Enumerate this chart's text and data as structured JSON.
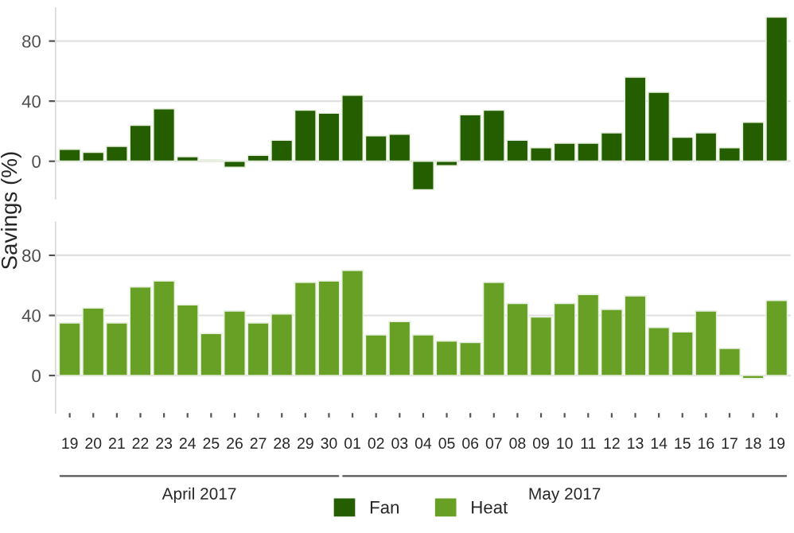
{
  "chart_data": [
    {
      "type": "bar",
      "ylabel": "Savings (%)",
      "categories": [
        "19",
        "20",
        "21",
        "22",
        "23",
        "24",
        "25",
        "26",
        "27",
        "28",
        "29",
        "30",
        "01",
        "02",
        "03",
        "04",
        "05",
        "06",
        "07",
        "08",
        "09",
        "10",
        "11",
        "12",
        "13",
        "14",
        "15",
        "16",
        "17",
        "18",
        "19"
      ],
      "series": [
        {
          "name": "Fan",
          "color": "#255e00",
          "values": [
            8,
            6,
            10,
            24,
            35,
            3,
            1,
            -4,
            4,
            14,
            34,
            32,
            44,
            17,
            18,
            -19,
            -3,
            31,
            34,
            14,
            9,
            12,
            12,
            19,
            56,
            46,
            16,
            19,
            9,
            26,
            96
          ]
        }
      ],
      "ylim": [
        -25,
        102
      ],
      "yticks": [
        0,
        40,
        80
      ],
      "grid": "y",
      "legend": "bottom",
      "tick_labels": "y"
    },
    {
      "type": "bar",
      "categories": [
        "19",
        "20",
        "21",
        "22",
        "23",
        "24",
        "25",
        "26",
        "27",
        "28",
        "29",
        "30",
        "01",
        "02",
        "03",
        "04",
        "05",
        "06",
        "07",
        "08",
        "09",
        "10",
        "11",
        "12",
        "13",
        "14",
        "15",
        "16",
        "17",
        "18",
        "19"
      ],
      "series": [
        {
          "name": "Heat",
          "color": "#67a024",
          "values": [
            35,
            45,
            35,
            59,
            63,
            47,
            28,
            43,
            35,
            41,
            62,
            63,
            70,
            27,
            36,
            27,
            23,
            22,
            62,
            48,
            39,
            48,
            54,
            44,
            53,
            32,
            29,
            43,
            18,
            -2,
            50
          ]
        }
      ],
      "ylim": [
        -25,
        102
      ],
      "yticks": [
        0,
        40,
        80
      ],
      "grid": "y",
      "legend": "bottom",
      "annotations": [
        "April 2017",
        "May 2017"
      ]
    }
  ]
}
